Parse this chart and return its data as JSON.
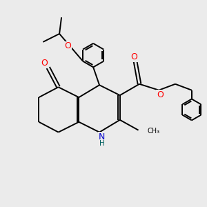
{
  "bg_color": "#ebebeb",
  "atom_colors": {
    "O": "#ff0000",
    "N": "#0000cc",
    "C": "#000000",
    "H": "#006060"
  },
  "bond_color": "#000000",
  "bond_width": 1.4,
  "figsize": [
    3.0,
    3.0
  ],
  "dpi": 100
}
